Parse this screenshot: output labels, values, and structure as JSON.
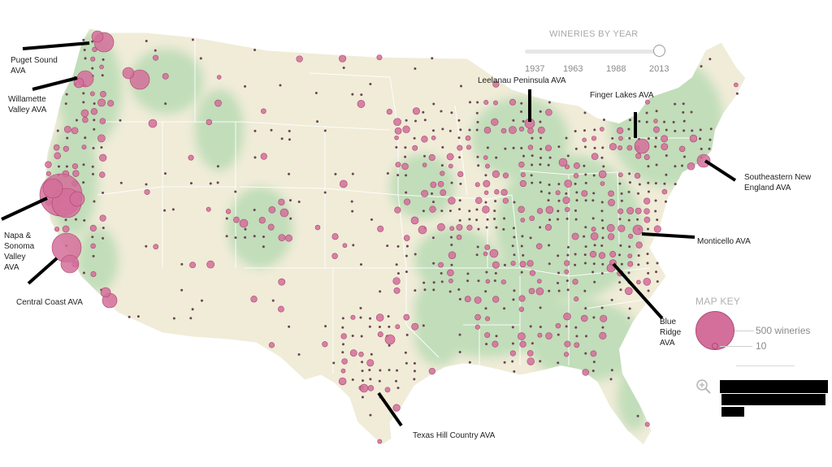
{
  "slider": {
    "title": "WINERIES BY YEAR",
    "ticks": [
      "1937",
      "1963",
      "1988",
      "2013"
    ],
    "selected": "2013"
  },
  "map_key": {
    "title": "MAP KEY",
    "large_label": "500 wineries",
    "small_label": "10"
  },
  "ava_labels": [
    {
      "id": "puget-sound",
      "text": "Puget Sound\nAVA"
    },
    {
      "id": "willamette",
      "text": "Willamette\nValley AVA"
    },
    {
      "id": "napa-sonoma",
      "text": "Napa &\nSonoma\nValley\nAVA"
    },
    {
      "id": "central-coast",
      "text": "Central Coast AVA"
    },
    {
      "id": "leelanau",
      "text": "Leelanau Peninsula AVA"
    },
    {
      "id": "finger-lakes",
      "text": "Finger Lakes AVA"
    },
    {
      "id": "se-new-england",
      "text": "Southeastern New\nEngland AVA"
    },
    {
      "id": "monticello",
      "text": "Monticello AVA"
    },
    {
      "id": "blue-ridge",
      "text": "Blue\nRidge\nAVA"
    },
    {
      "id": "texas-hill",
      "text": "Texas Hill Country AVA"
    }
  ],
  "colors": {
    "bubble_fill": "#d36f9a",
    "bubble_stroke": "#a8456f",
    "small_dot": "#6b4454",
    "land": "#f0ecd8",
    "forest": "#bcdcb6",
    "border": "#ffffff"
  },
  "icons": {
    "zoom": "zoom-in-icon"
  }
}
